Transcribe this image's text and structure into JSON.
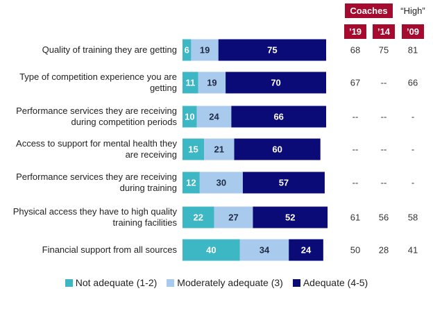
{
  "chart_data": {
    "type": "stacked-bar-horizontal",
    "categories": [
      "Quality of training they are getting",
      "Type of competition experience you are getting",
      "Performance services they are receiving during competition periods",
      "Access to support for mental health they are receiving",
      "Performance services they are receiving during training",
      "Physical access they have to high quality training facilities",
      "Financial support from all sources"
    ],
    "series": [
      {
        "name": "Not adequate (1-2)",
        "color": "#3db7c4",
        "text_color": "#ffffff",
        "values": [
          6,
          11,
          10,
          15,
          12,
          22,
          40
        ]
      },
      {
        "name": "Moderately adequate (3)",
        "color": "#a8caed",
        "text_color": "#1f2a44",
        "values": [
          19,
          19,
          24,
          21,
          30,
          27,
          34
        ]
      },
      {
        "name": "Adequate (4-5)",
        "color": "#0b0b78",
        "text_color": "#ffffff",
        "values": [
          75,
          70,
          66,
          60,
          57,
          52,
          24
        ]
      }
    ],
    "xlim": [
      0,
      100
    ],
    "legend": "bottom",
    "table": {
      "group_headers": [
        "Coaches",
        "“High”"
      ],
      "columns": [
        "’19",
        "’14",
        "’09"
      ],
      "rows": [
        [
          68,
          75,
          81
        ],
        [
          67,
          "--",
          66
        ],
        [
          "--",
          "--",
          "-"
        ],
        [
          "--",
          "--",
          "-"
        ],
        [
          "--",
          "--",
          "-"
        ],
        [
          61,
          56,
          58
        ],
        [
          50,
          28,
          41
        ]
      ]
    }
  }
}
